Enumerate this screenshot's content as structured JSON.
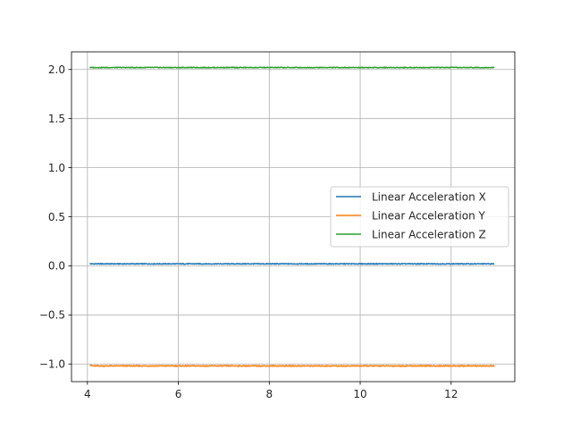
{
  "chart_data": {
    "type": "line",
    "title": "",
    "xlabel": "",
    "ylabel": "",
    "xlim": [
      3.65,
      13.4
    ],
    "ylim": [
      -1.18,
      2.18
    ],
    "x_ticks": [
      4,
      6,
      8,
      10,
      12
    ],
    "x_tick_labels": [
      "4",
      "6",
      "8",
      "10",
      "12"
    ],
    "y_ticks": [
      -1.0,
      -0.5,
      0.0,
      0.5,
      1.0,
      1.5,
      2.0
    ],
    "y_tick_labels": [
      "−1.0",
      "−0.5",
      "0.0",
      "0.5",
      "1.0",
      "1.5",
      "2.0"
    ],
    "grid": true,
    "legend": "center-right",
    "x_range": [
      4.05,
      12.95
    ],
    "series": [
      {
        "name": "Linear Acceleration X",
        "color": "#1f77b4",
        "level": 0.02,
        "noise": 0.004
      },
      {
        "name": "Linear Acceleration Y",
        "color": "#ff7f0e",
        "level": -1.02,
        "noise": 0.005
      },
      {
        "name": "Linear Acceleration Z",
        "color": "#2ca02c",
        "level": 2.02,
        "noise": 0.004
      }
    ]
  }
}
